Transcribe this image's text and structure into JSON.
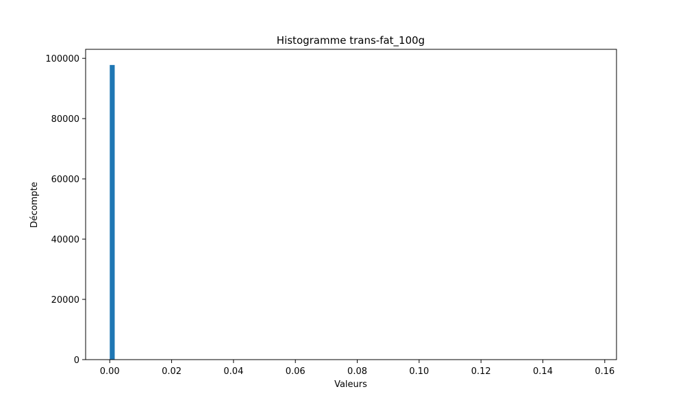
{
  "chart_data": {
    "type": "bar",
    "title": "Histogramme trans-fat_100g",
    "xlabel": "Valeurs",
    "ylabel": "Décompte",
    "xlim": [
      -0.0078,
      0.1638
    ],
    "ylim": [
      0,
      103000
    ],
    "x_ticks": [
      0.0,
      0.02,
      0.04,
      0.06,
      0.08,
      0.1,
      0.12,
      0.14,
      0.16
    ],
    "x_tick_labels": [
      "0.00",
      "0.02",
      "0.04",
      "0.06",
      "0.08",
      "0.10",
      "0.12",
      "0.14",
      "0.16"
    ],
    "y_ticks": [
      0,
      20000,
      40000,
      60000,
      80000,
      100000
    ],
    "y_tick_labels": [
      "0",
      "20000",
      "40000",
      "60000",
      "80000",
      "100000"
    ],
    "bins": [
      {
        "x0": 0.0,
        "x1": 0.0016,
        "count": 97800
      }
    ],
    "bar_color": "#1f77b4",
    "grid": false,
    "legend": "none"
  }
}
